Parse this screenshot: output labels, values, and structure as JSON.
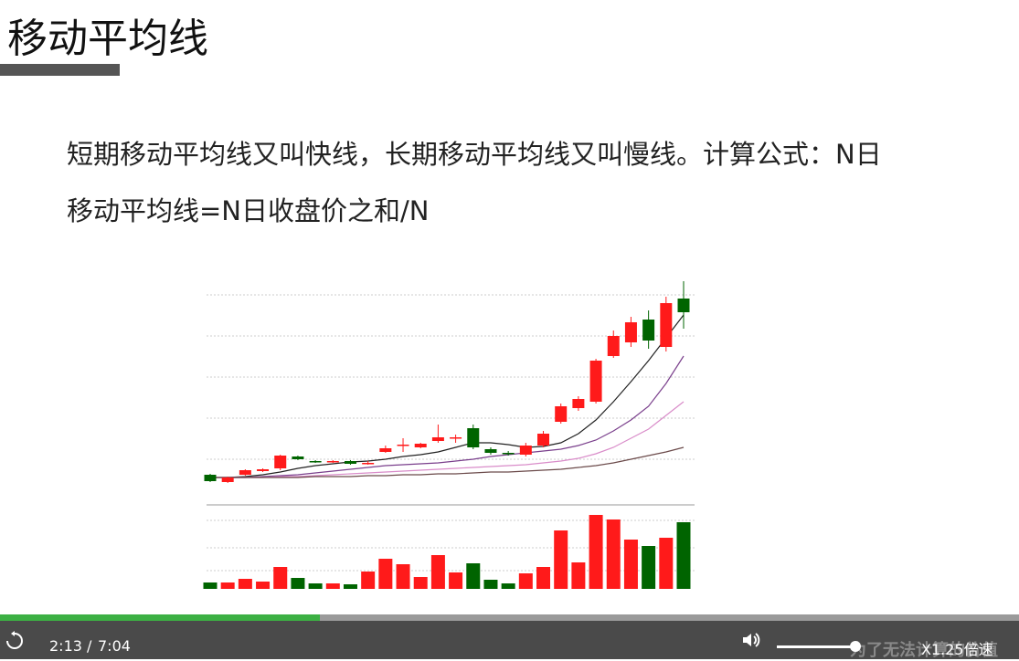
{
  "slide": {
    "title": "移动平均线",
    "lines": [
      "短期移动平均线又叫快线，长期移动平均线又叫慢线。计算公式：N日",
      "移动平均线=N日收盘价之和/N"
    ]
  },
  "chart": {
    "type": "candlestick",
    "ylim": [
      0,
      240
    ],
    "volume_ylim": [
      0,
      90
    ],
    "up_color": "#ff1a1a",
    "down_color": "#006400",
    "open": [
      20,
      12,
      20,
      24,
      27,
      40,
      35,
      34,
      35,
      33,
      45,
      52,
      50,
      57,
      60,
      71,
      48,
      44,
      42,
      52,
      78,
      93,
      100,
      150,
      165,
      190,
      160,
      213
    ],
    "close": [
      13,
      17,
      25,
      26,
      41,
      37,
      34,
      35,
      32,
      33,
      49,
      53,
      54,
      61,
      61,
      50,
      44,
      43,
      52,
      65,
      95,
      103,
      145,
      172,
      187,
      167,
      208,
      198
    ],
    "high": [
      21,
      18,
      26,
      27,
      42,
      41,
      36,
      36,
      36,
      35,
      52,
      60,
      55,
      75,
      64,
      75,
      50,
      46,
      55,
      68,
      98,
      106,
      147,
      178,
      193,
      200,
      215,
      232
    ],
    "low": [
      12,
      11,
      19,
      23,
      25,
      36,
      33,
      33,
      31,
      31,
      44,
      45,
      49,
      55,
      55,
      48,
      42,
      41,
      40,
      50,
      76,
      90,
      98,
      148,
      160,
      158,
      155,
      180
    ],
    "volume": [
      7,
      7,
      11,
      8,
      24,
      12,
      6,
      6,
      5,
      19,
      33,
      27,
      13,
      37,
      18,
      28,
      10,
      6,
      17,
      24,
      64,
      29,
      81,
      76,
      54,
      47,
      56,
      73
    ],
    "ma": [
      {
        "color": "#222222",
        "values": [
          17,
          17,
          18,
          20,
          23,
          27,
          30,
          32,
          34,
          35,
          37,
          40,
          42,
          45,
          50,
          55,
          55,
          53,
          50,
          51,
          55,
          65,
          80,
          100,
          122,
          145,
          170,
          195
        ]
      },
      {
        "color": "#7a3f8c",
        "values": [
          17,
          17,
          17,
          18,
          19,
          20,
          22,
          24,
          26,
          28,
          30,
          31,
          32,
          33,
          35,
          37,
          40,
          42,
          44,
          46,
          48,
          52,
          58,
          68,
          80,
          95,
          120,
          150
        ]
      },
      {
        "color": "#d98cc9",
        "values": [
          17,
          17,
          17,
          17,
          18,
          18,
          19,
          20,
          21,
          22,
          23,
          24,
          25,
          26,
          27,
          28,
          29,
          30,
          31,
          33,
          35,
          38,
          43,
          50,
          60,
          70,
          85,
          100
        ]
      },
      {
        "color": "#6b4a4a",
        "values": [
          17,
          17,
          17,
          17,
          17,
          17,
          18,
          18,
          18,
          19,
          19,
          20,
          20,
          21,
          21,
          22,
          23,
          23,
          24,
          25,
          26,
          28,
          30,
          33,
          37,
          41,
          45,
          50
        ]
      }
    ]
  },
  "player": {
    "time": "2:13",
    "separator": "/",
    "duration": "7:04",
    "speed": "X1.25倍速",
    "watermark": "为了无法计算的价值"
  }
}
